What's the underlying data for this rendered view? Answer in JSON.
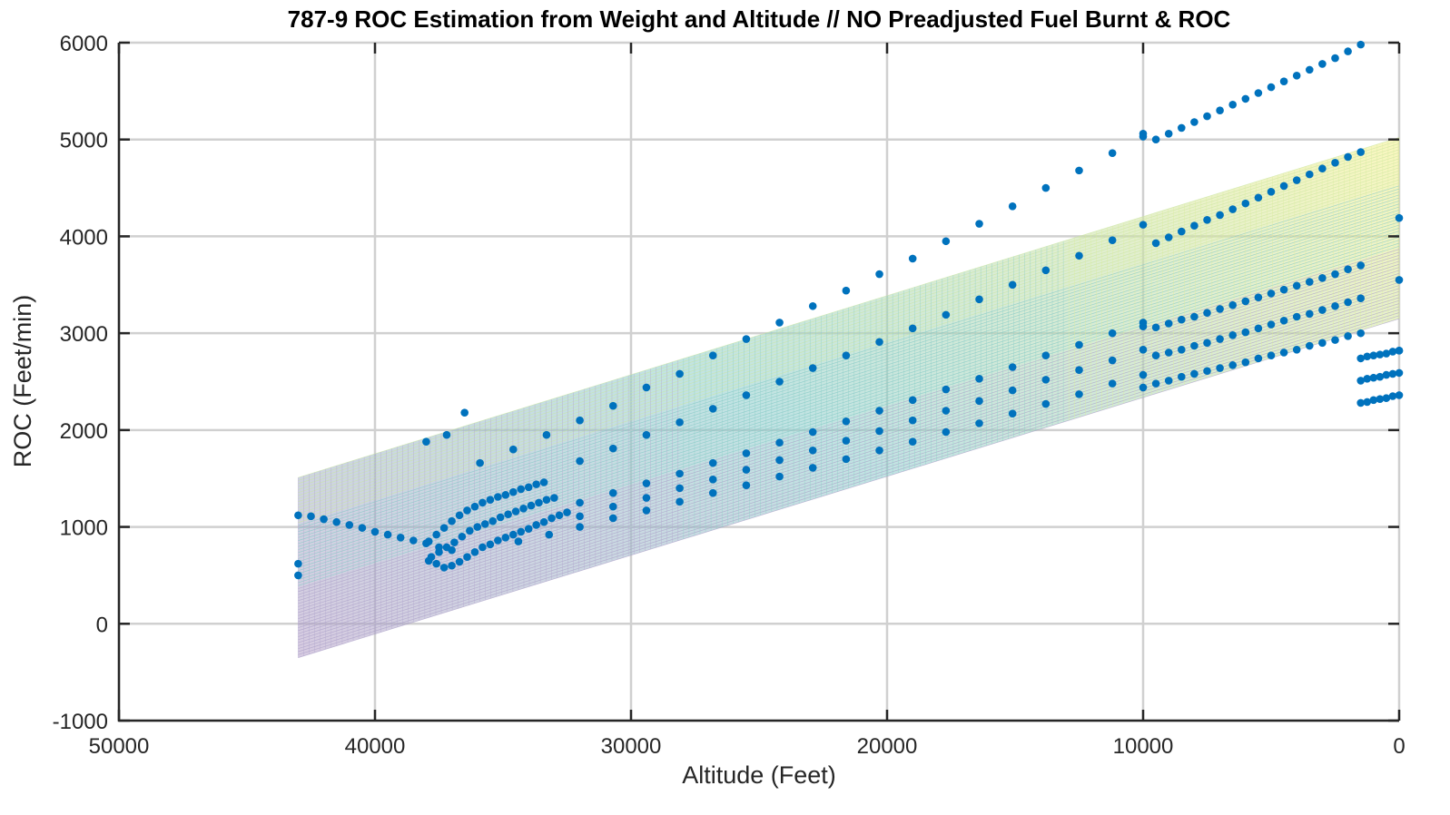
{
  "chart_data": {
    "type": "scatter",
    "title": "787-9 ROC Estimation from Weight and Altitude // NO Preadjusted Fuel Burnt & ROC",
    "xlabel": "Altitude (Feet)",
    "ylabel": "ROC (Feet/min)",
    "xlim": [
      0,
      50000
    ],
    "x_reversed": true,
    "ylim": [
      -1000,
      6000
    ],
    "x_ticks": [
      "50000",
      "40000",
      "30000",
      "20000",
      "10000",
      "0"
    ],
    "y_ticks": [
      "6000",
      "5000",
      "4000",
      "3000",
      "2000",
      "1000",
      "0",
      "-1000"
    ],
    "grid": true,
    "colors": {
      "points": "#0072bd",
      "grid": "#d0d0d0",
      "axis": "#262626",
      "surface_low": "#b59fc8",
      "surface_mid": "#8ecdcc",
      "surface_high": "#f5f08a"
    },
    "surface": {
      "type": "plane",
      "altitude_range": [
        0,
        43000
      ],
      "roc_at_0": [
        3150,
        5020
      ],
      "roc_at_43000": [
        -350,
        1510
      ]
    },
    "series": [
      {
        "x": [
          1500,
          2000,
          2500,
          3000,
          3500,
          4000,
          4500,
          5000,
          5500,
          6000,
          6500,
          7000,
          7500,
          8000,
          8500,
          9000,
          9500,
          10000,
          10000,
          11200,
          12500,
          13800,
          15100,
          16400,
          17700,
          19000,
          20300,
          21600,
          22900,
          24200,
          25500,
          26800,
          28100,
          29400,
          30700,
          32000,
          33300,
          34600,
          35900,
          36500,
          37200,
          38000
        ],
        "y": [
          5980,
          5910,
          5840,
          5780,
          5720,
          5660,
          5600,
          5540,
          5480,
          5420,
          5360,
          5300,
          5240,
          5180,
          5120,
          5060,
          5000,
          5060,
          5030,
          4860,
          4680,
          4500,
          4310,
          4130,
          3950,
          3770,
          3610,
          3440,
          3280,
          3110,
          2940,
          2770,
          2580,
          2440,
          2250,
          2100,
          1950,
          1800,
          1660,
          2180,
          1950,
          1880
        ]
      },
      {
        "x": [
          1500,
          2000,
          2500,
          3000,
          3500,
          4000,
          4500,
          5000,
          5500,
          6000,
          6500,
          7000,
          7500,
          8000,
          8500,
          9000,
          9500,
          10000,
          11200,
          12500,
          13800,
          15100,
          16400,
          17700,
          19000,
          20300,
          21600,
          22900,
          24200,
          25500,
          26800,
          28100,
          29400,
          30700,
          32000
        ],
        "y": [
          4870,
          4820,
          4760,
          4700,
          4640,
          4580,
          4520,
          4460,
          4400,
          4340,
          4280,
          4220,
          4170,
          4110,
          4050,
          3990,
          3930,
          4120,
          3960,
          3800,
          3650,
          3500,
          3350,
          3190,
          3050,
          2910,
          2770,
          2640,
          2500,
          2360,
          2220,
          2080,
          1950,
          1810,
          1680
        ]
      },
      {
        "x": [
          1500,
          2000,
          2500,
          3000,
          3500,
          4000,
          4500,
          5000,
          5500,
          6000,
          6500,
          7000,
          7500,
          8000,
          8500,
          9000,
          9500,
          10000,
          10000,
          11200,
          12500,
          13800,
          15100,
          16400,
          17700,
          19000,
          20300,
          21600,
          22900,
          24200,
          25500,
          26800,
          28100,
          29400,
          30700,
          32000
        ],
        "y": [
          3700,
          3660,
          3610,
          3570,
          3530,
          3490,
          3450,
          3410,
          3370,
          3330,
          3290,
          3250,
          3210,
          3170,
          3140,
          3100,
          3060,
          3110,
          3070,
          3000,
          2880,
          2770,
          2650,
          2530,
          2420,
          2310,
          2200,
          2090,
          1980,
          1870,
          1760,
          1660,
          1550,
          1450,
          1350,
          1250
        ]
      },
      {
        "x": [
          1500,
          2000,
          2500,
          3000,
          3500,
          4000,
          4500,
          5000,
          5500,
          6000,
          6500,
          7000,
          7500,
          8000,
          8500,
          9000,
          9500,
          10000,
          11200,
          12500,
          13800,
          15100,
          16400,
          17700,
          19000,
          20300,
          21600,
          22900,
          24200,
          25500,
          26800,
          28100,
          29400,
          30700,
          32000
        ],
        "y": [
          3360,
          3320,
          3280,
          3240,
          3200,
          3170,
          3130,
          3090,
          3050,
          3010,
          2980,
          2940,
          2900,
          2870,
          2830,
          2800,
          2770,
          2830,
          2720,
          2620,
          2520,
          2410,
          2300,
          2200,
          2100,
          1990,
          1890,
          1790,
          1690,
          1590,
          1490,
          1400,
          1300,
          1210,
          1110
        ]
      },
      {
        "x": [
          1500,
          2000,
          2500,
          3000,
          3500,
          4000,
          4500,
          5000,
          5500,
          6000,
          6500,
          7000,
          7500,
          8000,
          8500,
          9000,
          9500,
          10000,
          10000,
          11200,
          12500,
          13800,
          15100,
          16400,
          17700,
          19000,
          20300,
          21600,
          22900,
          24200,
          25500,
          26800,
          28100,
          29400,
          30700,
          32000,
          33200,
          34400
        ],
        "y": [
          3000,
          2970,
          2930,
          2900,
          2870,
          2830,
          2800,
          2770,
          2740,
          2700,
          2670,
          2640,
          2610,
          2580,
          2550,
          2510,
          2480,
          2570,
          2440,
          2480,
          2370,
          2270,
          2170,
          2070,
          1980,
          1880,
          1790,
          1700,
          1610,
          1520,
          1430,
          1350,
          1260,
          1170,
          1090,
          1000,
          920,
          850
        ]
      },
      {
        "x": [
          0,
          0,
          0
        ],
        "y": [
          4190,
          3550,
          2820
        ]
      },
      {
        "x": [
          0,
          250,
          500,
          750,
          1000,
          1250,
          1500,
          0,
          250,
          500,
          750,
          1000,
          1250,
          1500,
          0,
          250,
          500,
          750,
          1000,
          1250,
          1500
        ],
        "y": [
          2820,
          2810,
          2790,
          2780,
          2770,
          2760,
          2740,
          2590,
          2580,
          2570,
          2550,
          2540,
          2530,
          2510,
          2360,
          2350,
          2330,
          2320,
          2310,
          2290,
          2280
        ]
      },
      {
        "x": [
          33400,
          33700,
          34000,
          34300,
          34600,
          34900,
          35200,
          35500,
          35800,
          36100,
          36400,
          36700,
          37000,
          37300,
          37600,
          37900,
          33000,
          33300,
          33600,
          33900,
          34200,
          34500,
          34800,
          35100,
          35400,
          35700,
          36000,
          36300,
          36600,
          36900,
          37200,
          37500,
          37800,
          32500,
          32800,
          33100,
          33400,
          33700,
          34000,
          34300,
          34600,
          34900,
          35200,
          35500,
          35800,
          36100,
          36400,
          36700,
          37000,
          37300,
          37600,
          37900
        ],
        "y": [
          1460,
          1440,
          1410,
          1390,
          1360,
          1330,
          1310,
          1280,
          1250,
          1210,
          1170,
          1120,
          1060,
          990,
          920,
          850,
          1300,
          1280,
          1250,
          1220,
          1190,
          1160,
          1130,
          1100,
          1060,
          1030,
          1000,
          960,
          900,
          840,
          790,
          740,
          690,
          1150,
          1120,
          1090,
          1050,
          1020,
          980,
          950,
          920,
          890,
          860,
          820,
          790,
          740,
          690,
          640,
          600,
          580,
          620,
          650
        ]
      },
      {
        "x": [
          43000,
          43000,
          43000,
          42500,
          42000,
          41500,
          41000,
          40500,
          40000,
          39500,
          39000,
          38500,
          38000,
          37500,
          37000
        ],
        "y": [
          1120,
          620,
          500,
          1110,
          1080,
          1050,
          1020,
          990,
          950,
          920,
          890,
          860,
          830,
          790,
          760
        ]
      }
    ]
  }
}
